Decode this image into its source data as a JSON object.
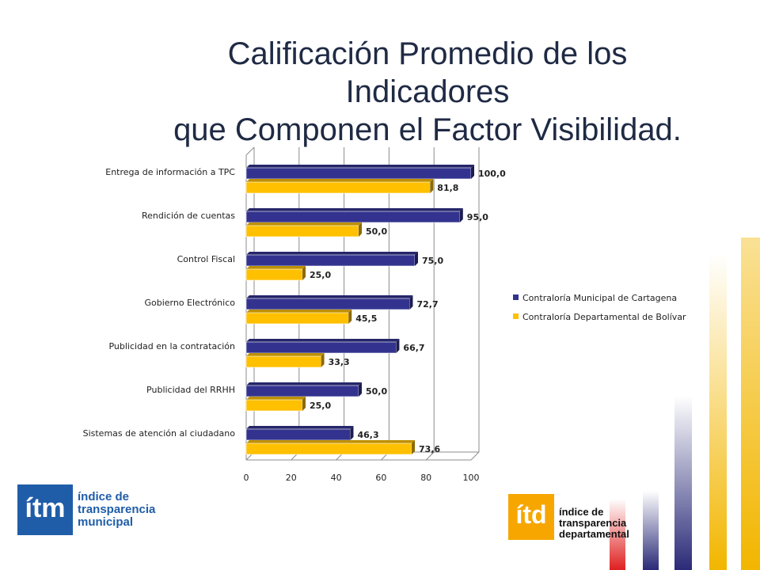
{
  "title_line1": "Calificación Promedio de los Indicadores",
  "title_line2": "que Componen el Factor Visibilidad.",
  "colors": {
    "series1": "#33338f",
    "series2": "#ffc000",
    "title": "#1f2a44",
    "itm_blue": "#1f5da8",
    "itd_orange": "#f7a600"
  },
  "logos": {
    "itm": {
      "mark": "ítm",
      "line1": "índice de",
      "line2": "transparencia",
      "line3": "municipal"
    },
    "itd": {
      "mark": "ítd",
      "line1": "índice de",
      "line2": "transparencia",
      "line3": "departamental"
    }
  },
  "chart_data": {
    "type": "bar",
    "orientation": "horizontal",
    "categories": [
      "Entrega de información a TPC",
      "Rendición de cuentas",
      "Control Fiscal",
      "Gobierno Electrónico",
      "Publicidad en la contratación",
      "Publicidad del RRHH",
      "Sistemas de atención al ciudadano"
    ],
    "series": [
      {
        "name": "Contraloría Municipal de Cartagena",
        "values": [
          100.0,
          95.0,
          75.0,
          72.7,
          66.7,
          50.0,
          46.3
        ]
      },
      {
        "name": "Contraloría Departamental de Bolívar",
        "values": [
          81.8,
          50.0,
          25.0,
          45.5,
          33.3,
          25.0,
          73.6
        ]
      }
    ],
    "value_labels": [
      [
        "100,0",
        "95,0",
        "75,0",
        "72,7",
        "66,7",
        "50,0",
        "46,3"
      ],
      [
        "81,8",
        "50,0",
        "25,0",
        "45,5",
        "33,3",
        "25,0",
        "73,6"
      ]
    ],
    "x_ticks": [
      "0",
      "20",
      "40",
      "60",
      "80",
      "100"
    ],
    "xlim": [
      0,
      100
    ],
    "grid": true,
    "legend": "right",
    "bar_style": "3d"
  }
}
